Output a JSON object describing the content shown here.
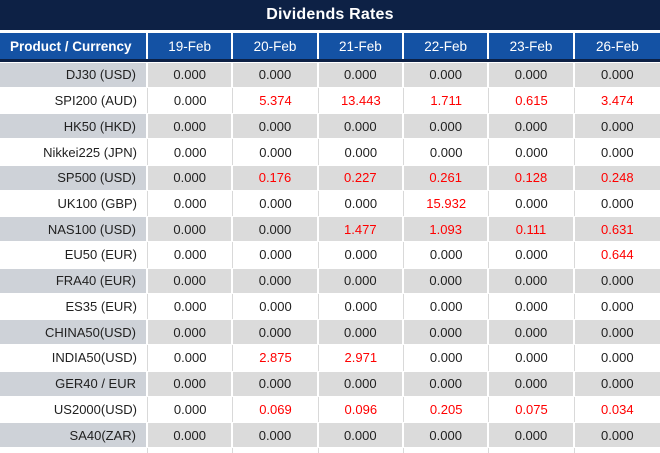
{
  "title": "Dividends Rates",
  "header": {
    "product_column": "Product / Currency",
    "dates": [
      "19-Feb",
      "20-Feb",
      "21-Feb",
      "22-Feb",
      "23-Feb",
      "26-Feb"
    ]
  },
  "rows": [
    {
      "product": "DJ30 (USD)",
      "values": [
        "0.000",
        "0.000",
        "0.000",
        "0.000",
        "0.000",
        "0.000"
      ]
    },
    {
      "product": "SPI200 (AUD)",
      "values": [
        "0.000",
        "5.374",
        "13.443",
        "1.711",
        "0.615",
        "3.474"
      ]
    },
    {
      "product": "HK50 (HKD)",
      "values": [
        "0.000",
        "0.000",
        "0.000",
        "0.000",
        "0.000",
        "0.000"
      ]
    },
    {
      "product": "Nikkei225 (JPN)",
      "values": [
        "0.000",
        "0.000",
        "0.000",
        "0.000",
        "0.000",
        "0.000"
      ]
    },
    {
      "product": "SP500 (USD)",
      "values": [
        "0.000",
        "0.176",
        "0.227",
        "0.261",
        "0.128",
        "0.248"
      ]
    },
    {
      "product": "UK100 (GBP)",
      "values": [
        "0.000",
        "0.000",
        "0.000",
        "15.932",
        "0.000",
        "0.000"
      ]
    },
    {
      "product": "NAS100 (USD)",
      "values": [
        "0.000",
        "0.000",
        "1.477",
        "1.093",
        "0.111",
        "0.631"
      ]
    },
    {
      "product": "EU50 (EUR)",
      "values": [
        "0.000",
        "0.000",
        "0.000",
        "0.000",
        "0.000",
        "0.644"
      ]
    },
    {
      "product": "FRA40 (EUR)",
      "values": [
        "0.000",
        "0.000",
        "0.000",
        "0.000",
        "0.000",
        "0.000"
      ]
    },
    {
      "product": "ES35 (EUR)",
      "values": [
        "0.000",
        "0.000",
        "0.000",
        "0.000",
        "0.000",
        "0.000"
      ]
    },
    {
      "product": "CHINA50(USD)",
      "values": [
        "0.000",
        "0.000",
        "0.000",
        "0.000",
        "0.000",
        "0.000"
      ]
    },
    {
      "product": "INDIA50(USD)",
      "values": [
        "0.000",
        "2.875",
        "2.971",
        "0.000",
        "0.000",
        "0.000"
      ]
    },
    {
      "product": "GER40 / EUR",
      "values": [
        "0.000",
        "0.000",
        "0.000",
        "0.000",
        "0.000",
        "0.000"
      ]
    },
    {
      "product": "US2000(USD)",
      "values": [
        "0.000",
        "0.069",
        "0.096",
        "0.205",
        "0.075",
        "0.034"
      ]
    },
    {
      "product": "SA40(ZAR)",
      "values": [
        "0.000",
        "0.000",
        "0.000",
        "0.000",
        "0.000",
        "0.000"
      ]
    }
  ],
  "zero_value": "0.000",
  "colors": {
    "title_bg": "#0d2145",
    "header_bg": "#1452a4",
    "row_gray": "#dbdbdb",
    "row_gray_product": "#ced2d8",
    "sep_light": "#d9d9d9",
    "zero_text": "#212121",
    "nonzero_text": "#ff0000"
  }
}
